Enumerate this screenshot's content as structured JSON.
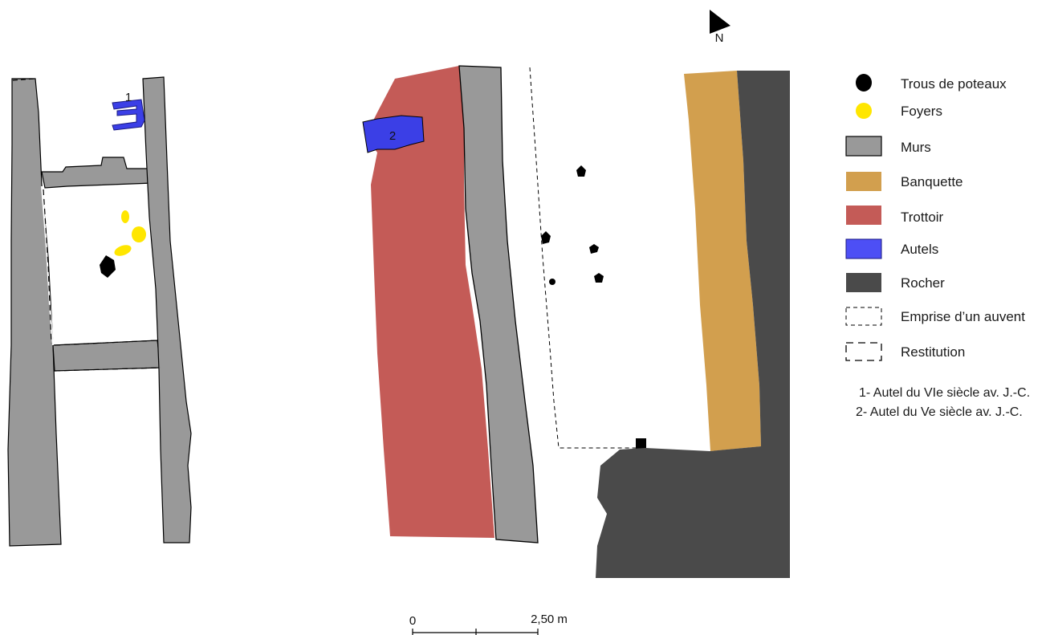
{
  "north": {
    "label": "N"
  },
  "colors": {
    "murs": "#999999",
    "banquette": "#d29f4e",
    "trottoir": "#c45b57",
    "autels": "#3b3fe6",
    "rocher": "#4a4a4a",
    "foyers": "#ffe600",
    "poteaux": "#000000"
  },
  "markers": {
    "autel_1": "1",
    "autel_2": "2"
  },
  "legend": [
    {
      "key": "poteaux",
      "label": "Trous de poteaux",
      "icon": "black-dot"
    },
    {
      "key": "foyers",
      "label": "Foyers",
      "icon": "yellow-dot"
    },
    {
      "key": "murs",
      "label": "Murs",
      "icon": "gray-box"
    },
    {
      "key": "banquette",
      "label": "Banquette",
      "icon": "ochre-box"
    },
    {
      "key": "trottoir",
      "label": "Trottoir",
      "icon": "red-box"
    },
    {
      "key": "autels",
      "label": "Autels",
      "icon": "blue-box"
    },
    {
      "key": "rocher",
      "label": "Rocher",
      "icon": "dark-box"
    },
    {
      "key": "auvent",
      "label": "Emprise d’un auvent",
      "icon": "fine-dashed-box"
    },
    {
      "key": "restitution",
      "label": "Restitution",
      "icon": "dashed-box"
    }
  ],
  "notes": [
    "1- Autel du VIe siècle av. J.-C.",
    "2- Autel du Ve siècle av. J.-C."
  ],
  "scale": {
    "start": "0",
    "end": "2,50 m"
  }
}
